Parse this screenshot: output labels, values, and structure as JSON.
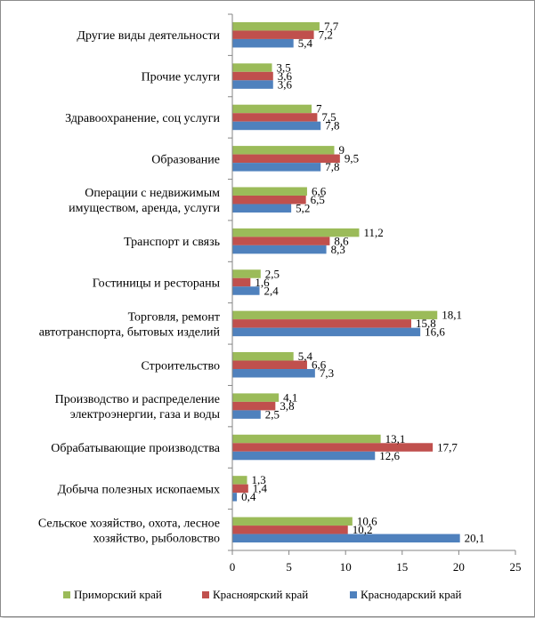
{
  "chart_data": {
    "type": "bar",
    "orientation": "horizontal",
    "categories": [
      "Другие виды деятельности",
      "Прочие услуги",
      "Здравоохранение, соц услуги",
      "Образование",
      "Операции с недвижимым имуществом, аренда, услуги",
      "Транспорт и связь",
      "Гостиницы и рестораны",
      "Торговля, ремонт автотранспорта, бытовых изделий",
      "Строительство",
      "Производство и распределение электроэнергии, газа и воды",
      "Обрабатывающие производства",
      "Добыча полезных ископаемых",
      "Сельское хозяйство, охота, лесное хозяйство, рыболовство"
    ],
    "category_lines": [
      [
        "Другие виды деятельности"
      ],
      [
        "Прочие услуги"
      ],
      [
        "Здравоохранение, соц услуги"
      ],
      [
        "Образование"
      ],
      [
        "Операции с недвижимым",
        "имуществом, аренда, услуги"
      ],
      [
        "Транспорт и связь"
      ],
      [
        "Гостиницы и рестораны"
      ],
      [
        "Торговля, ремонт",
        "автотранспорта, бытовых изделий"
      ],
      [
        "Строительство"
      ],
      [
        "Производство и распределение",
        "электроэнергии, газа и воды"
      ],
      [
        "Обрабатывающие производства"
      ],
      [
        "Добыча полезных ископаемых"
      ],
      [
        "Сельское хозяйство, охота, лесное",
        "хозяйство, рыболовство"
      ]
    ],
    "series": [
      {
        "name": "Приморский край",
        "color": "#9BBB59",
        "values": [
          7.7,
          3.5,
          7,
          9,
          6.6,
          11.2,
          2.5,
          18.1,
          5.4,
          4.1,
          13.1,
          1.3,
          10.6
        ],
        "labels": [
          "7,7",
          "3,5",
          "7",
          "9",
          "6,6",
          "11,2",
          "2,5",
          "18,1",
          "5,4",
          "4,1",
          "13,1",
          "1,3",
          "10,6"
        ]
      },
      {
        "name": "Красноярский край",
        "color": "#C0504D",
        "values": [
          7.2,
          3.6,
          7.5,
          9.5,
          6.5,
          8.6,
          1.6,
          15.8,
          6.6,
          3.8,
          17.7,
          1.4,
          10.2
        ],
        "labels": [
          "7,2",
          "3,6",
          "7,5",
          "9,5",
          "6,5",
          "8,6",
          "1,6",
          "15,8",
          "6,6",
          "3,8",
          "17,7",
          "1,4",
          "10,2"
        ]
      },
      {
        "name": "Краснодарский край",
        "color": "#4F81BD",
        "values": [
          5.4,
          3.6,
          7.8,
          7.8,
          5.2,
          8.3,
          2.4,
          16.6,
          7.3,
          2.5,
          12.6,
          0.4,
          20.1
        ],
        "labels": [
          "5,4",
          "3,6",
          "7,8",
          "7,8",
          "5,2",
          "8,3",
          "2,4",
          "16,6",
          "7,3",
          "2,5",
          "12,6",
          "0,4",
          "20,1"
        ]
      }
    ],
    "xlim": [
      0,
      25
    ],
    "xticks": [
      0,
      5,
      10,
      15,
      20,
      25
    ],
    "grid": false,
    "legend_position": "bottom"
  }
}
